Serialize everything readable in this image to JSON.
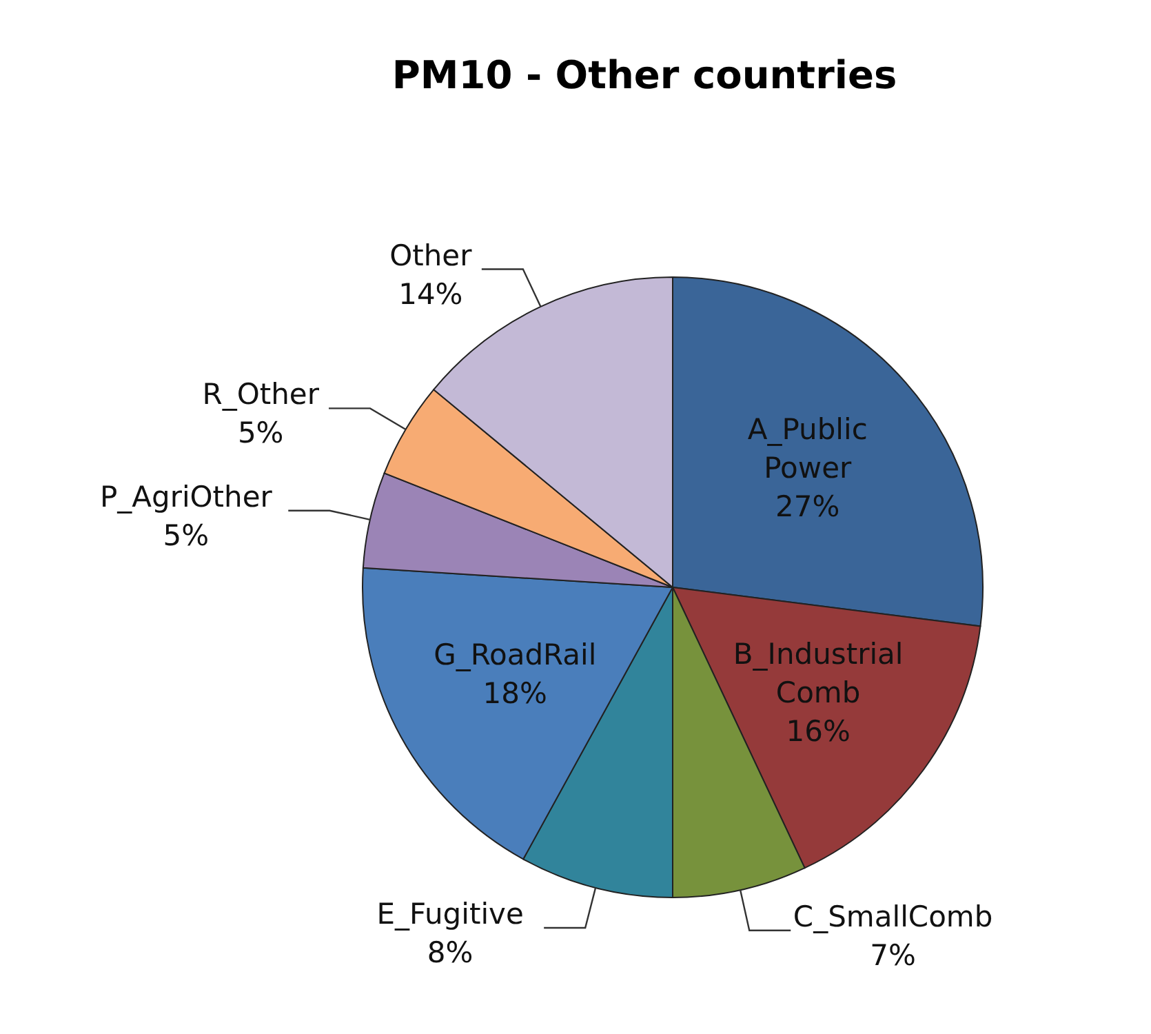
{
  "chart_data": {
    "type": "pie",
    "title": "PM10 - Other countries",
    "categories": [
      "A_Public Power",
      "B_Industrial Comb",
      "C_SmallComb",
      "E_Fugitive",
      "G_RoadRail",
      "P_AgriOther",
      "R_Other",
      "Other"
    ],
    "values": [
      27,
      16,
      7,
      8,
      18,
      5,
      5,
      14
    ],
    "value_labels": [
      "27%",
      "16%",
      "7%",
      "8%",
      "18%",
      "5%",
      "5%",
      "14%"
    ],
    "colors": [
      "#3a6598",
      "#953a3a",
      "#77923c",
      "#31849b",
      "#4a7ebb",
      "#9b84b6",
      "#f7ab73",
      "#c3b9d6"
    ],
    "legend": false
  }
}
